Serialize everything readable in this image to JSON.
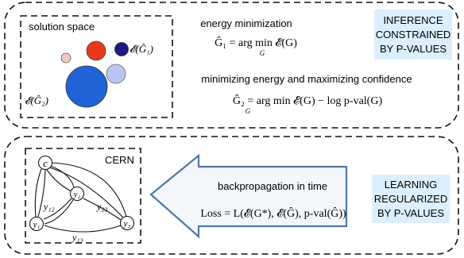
{
  "colors": {
    "badge_bg": "#dcefff",
    "arrow_fill": "#f3f7fb",
    "arrow_stroke": "#4f79a6",
    "bubble_red": "#e8391b",
    "bubble_navy": "#1c1a82",
    "bubble_blue_large": "#1f63d6",
    "bubble_blue_light": "#b8c6ef",
    "bubble_pink": "#f5c6c0"
  },
  "top_panel": {
    "solution_space": {
      "title": "solution space",
      "label_g1": "𝓔(Ĝ₁)",
      "label_g2": "𝓔(Ĝ₂)"
    },
    "energy_min": {
      "title": "energy minimization",
      "lhs": "Ĝ₁ = arg min 𝓔(G)",
      "sub": "G"
    },
    "energy_conf": {
      "title": "minimizing energy and maximizing confidence",
      "lhs": "Ĝ₂ = arg min 𝓔(G) − log p-val(G)",
      "sub": "G"
    },
    "badge": {
      "line1": "INFERENCE",
      "line2": "CONSTRAINED",
      "line3": "BY P-VALUES"
    }
  },
  "bottom_panel": {
    "cern": {
      "title": "CERN",
      "node_c": "c",
      "node_y1": "y₁",
      "node_y2": "y₂",
      "node_y3": "y₃",
      "edge_y12": "y₁₂",
      "edge_y23": "y₂₃",
      "edge_y13": "y₁₃"
    },
    "backprop": {
      "title": "backpropagation in time",
      "loss": "Loss = L(𝓔(G*), 𝓔(Ĝ), p-val(Ĝ))"
    },
    "badge": {
      "line1": "LEARNING",
      "line2": "REGULARIZED",
      "line3": "BY P-VALUES"
    }
  }
}
